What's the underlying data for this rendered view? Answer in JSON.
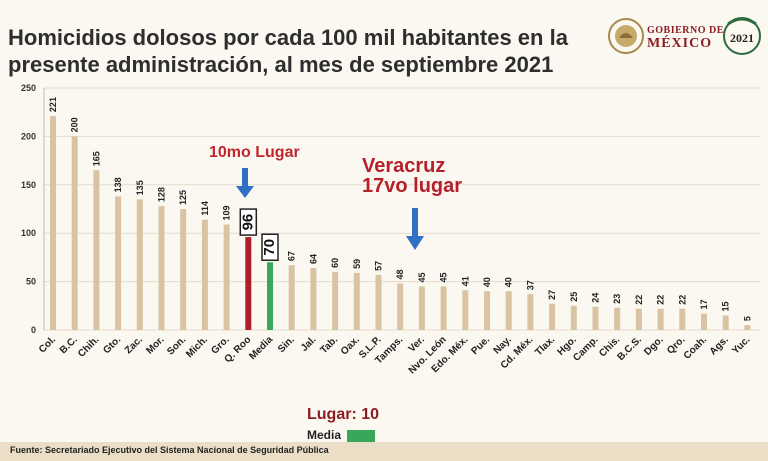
{
  "header": {
    "title_line1": "Homicidios dolosos por cada 100 mil habitantes en la",
    "title_line2": "presente administración, al mes de septiembre 2021"
  },
  "logo": {
    "gobierno": "GOBIERNO DE",
    "mexico": "MÉXICO",
    "badge_year": "2021"
  },
  "annotations": {
    "rank_label": "10mo Lugar",
    "veracruz_line1": "Veracruz",
    "veracruz_line2": "17vo lugar"
  },
  "legend": {
    "lugar": "Lugar: 10",
    "media": "Media"
  },
  "footer": {
    "source": "Fuente: Secretariado Ejecutivo del Sistema Nacional de Seguridad Pública"
  },
  "colors": {
    "bar_default": "#d9c3a2",
    "bar_highlight": "#b11e2b",
    "bar_media": "#3aa65a",
    "title": "#2e2e2e",
    "accent": "#8b1d24"
  },
  "chart_data": {
    "type": "bar",
    "categories": [
      "Col.",
      "B.C.",
      "Chih.",
      "Gto.",
      "Zac.",
      "Mor.",
      "Son.",
      "Mich.",
      "Gro.",
      "Q. Roo",
      "Media",
      "Sin.",
      "Jal.",
      "Tab.",
      "Oax.",
      "S.L.P.",
      "Tamps.",
      "Ver.",
      "Nvo. León",
      "Edo. Méx.",
      "Pue.",
      "Nay.",
      "Cd. Méx.",
      "Tlax.",
      "Hgo.",
      "Camp.",
      "Chis.",
      "B.C.S.",
      "Dgo.",
      "Qro.",
      "Coah.",
      "Ags.",
      "Yuc."
    ],
    "values": [
      221,
      200,
      165,
      138,
      135,
      128,
      125,
      114,
      109,
      96,
      70,
      67,
      64,
      60,
      59,
      57,
      48,
      45,
      45,
      41,
      40,
      40,
      37,
      27,
      25,
      24,
      23,
      22,
      22,
      22,
      17,
      15,
      5
    ],
    "highlight": {
      "Q. Roo": "#b11e2b",
      "Media": "#3aa65a"
    },
    "boxed_labels": [
      "Q. Roo",
      "Media"
    ],
    "ylim": [
      0,
      250
    ],
    "yticks": [
      0,
      50,
      100,
      150,
      200,
      250
    ],
    "grid": true,
    "title": "Homicidios dolosos por cada 100 mil habitantes en la presente administración, al mes de septiembre 2021"
  }
}
